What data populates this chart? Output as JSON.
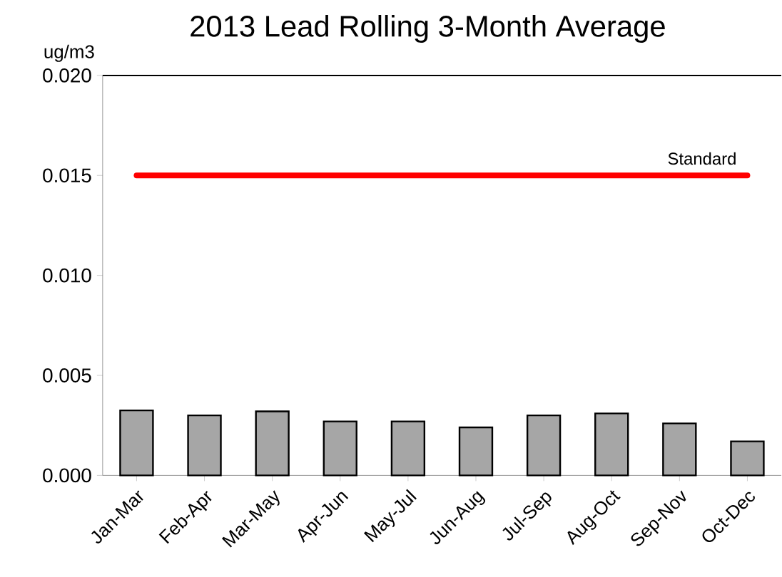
{
  "chart_data": {
    "type": "bar",
    "title": "2013 Lead Rolling 3-Month Average",
    "ylabel": "ug/m3",
    "categories": [
      "Jan-Mar",
      "Feb-Apr",
      "Mar-May",
      "Apr-Jun",
      "May-Jul",
      "Jun-Aug",
      "Jul-Sep",
      "Aug-Oct",
      "Sep-Nov",
      "Oct-Dec"
    ],
    "values": [
      0.00325,
      0.003,
      0.0032,
      0.0027,
      0.0027,
      0.0024,
      0.003,
      0.0031,
      0.0026,
      0.0017
    ],
    "color": "#a6a6a6",
    "ylim": [
      0,
      0.02
    ],
    "yticks": [
      {
        "value": 0,
        "label": "0.000"
      },
      {
        "value": 0.005,
        "label": "0.005"
      },
      {
        "value": 0.01,
        "label": "0.010"
      },
      {
        "value": 0.015,
        "label": "0.015"
      },
      {
        "value": 0.02,
        "label": "0.020"
      }
    ],
    "ref_lines": [
      {
        "axis": "y",
        "value": 0.015,
        "label": "Standard",
        "color": "#ff0000"
      }
    ]
  }
}
